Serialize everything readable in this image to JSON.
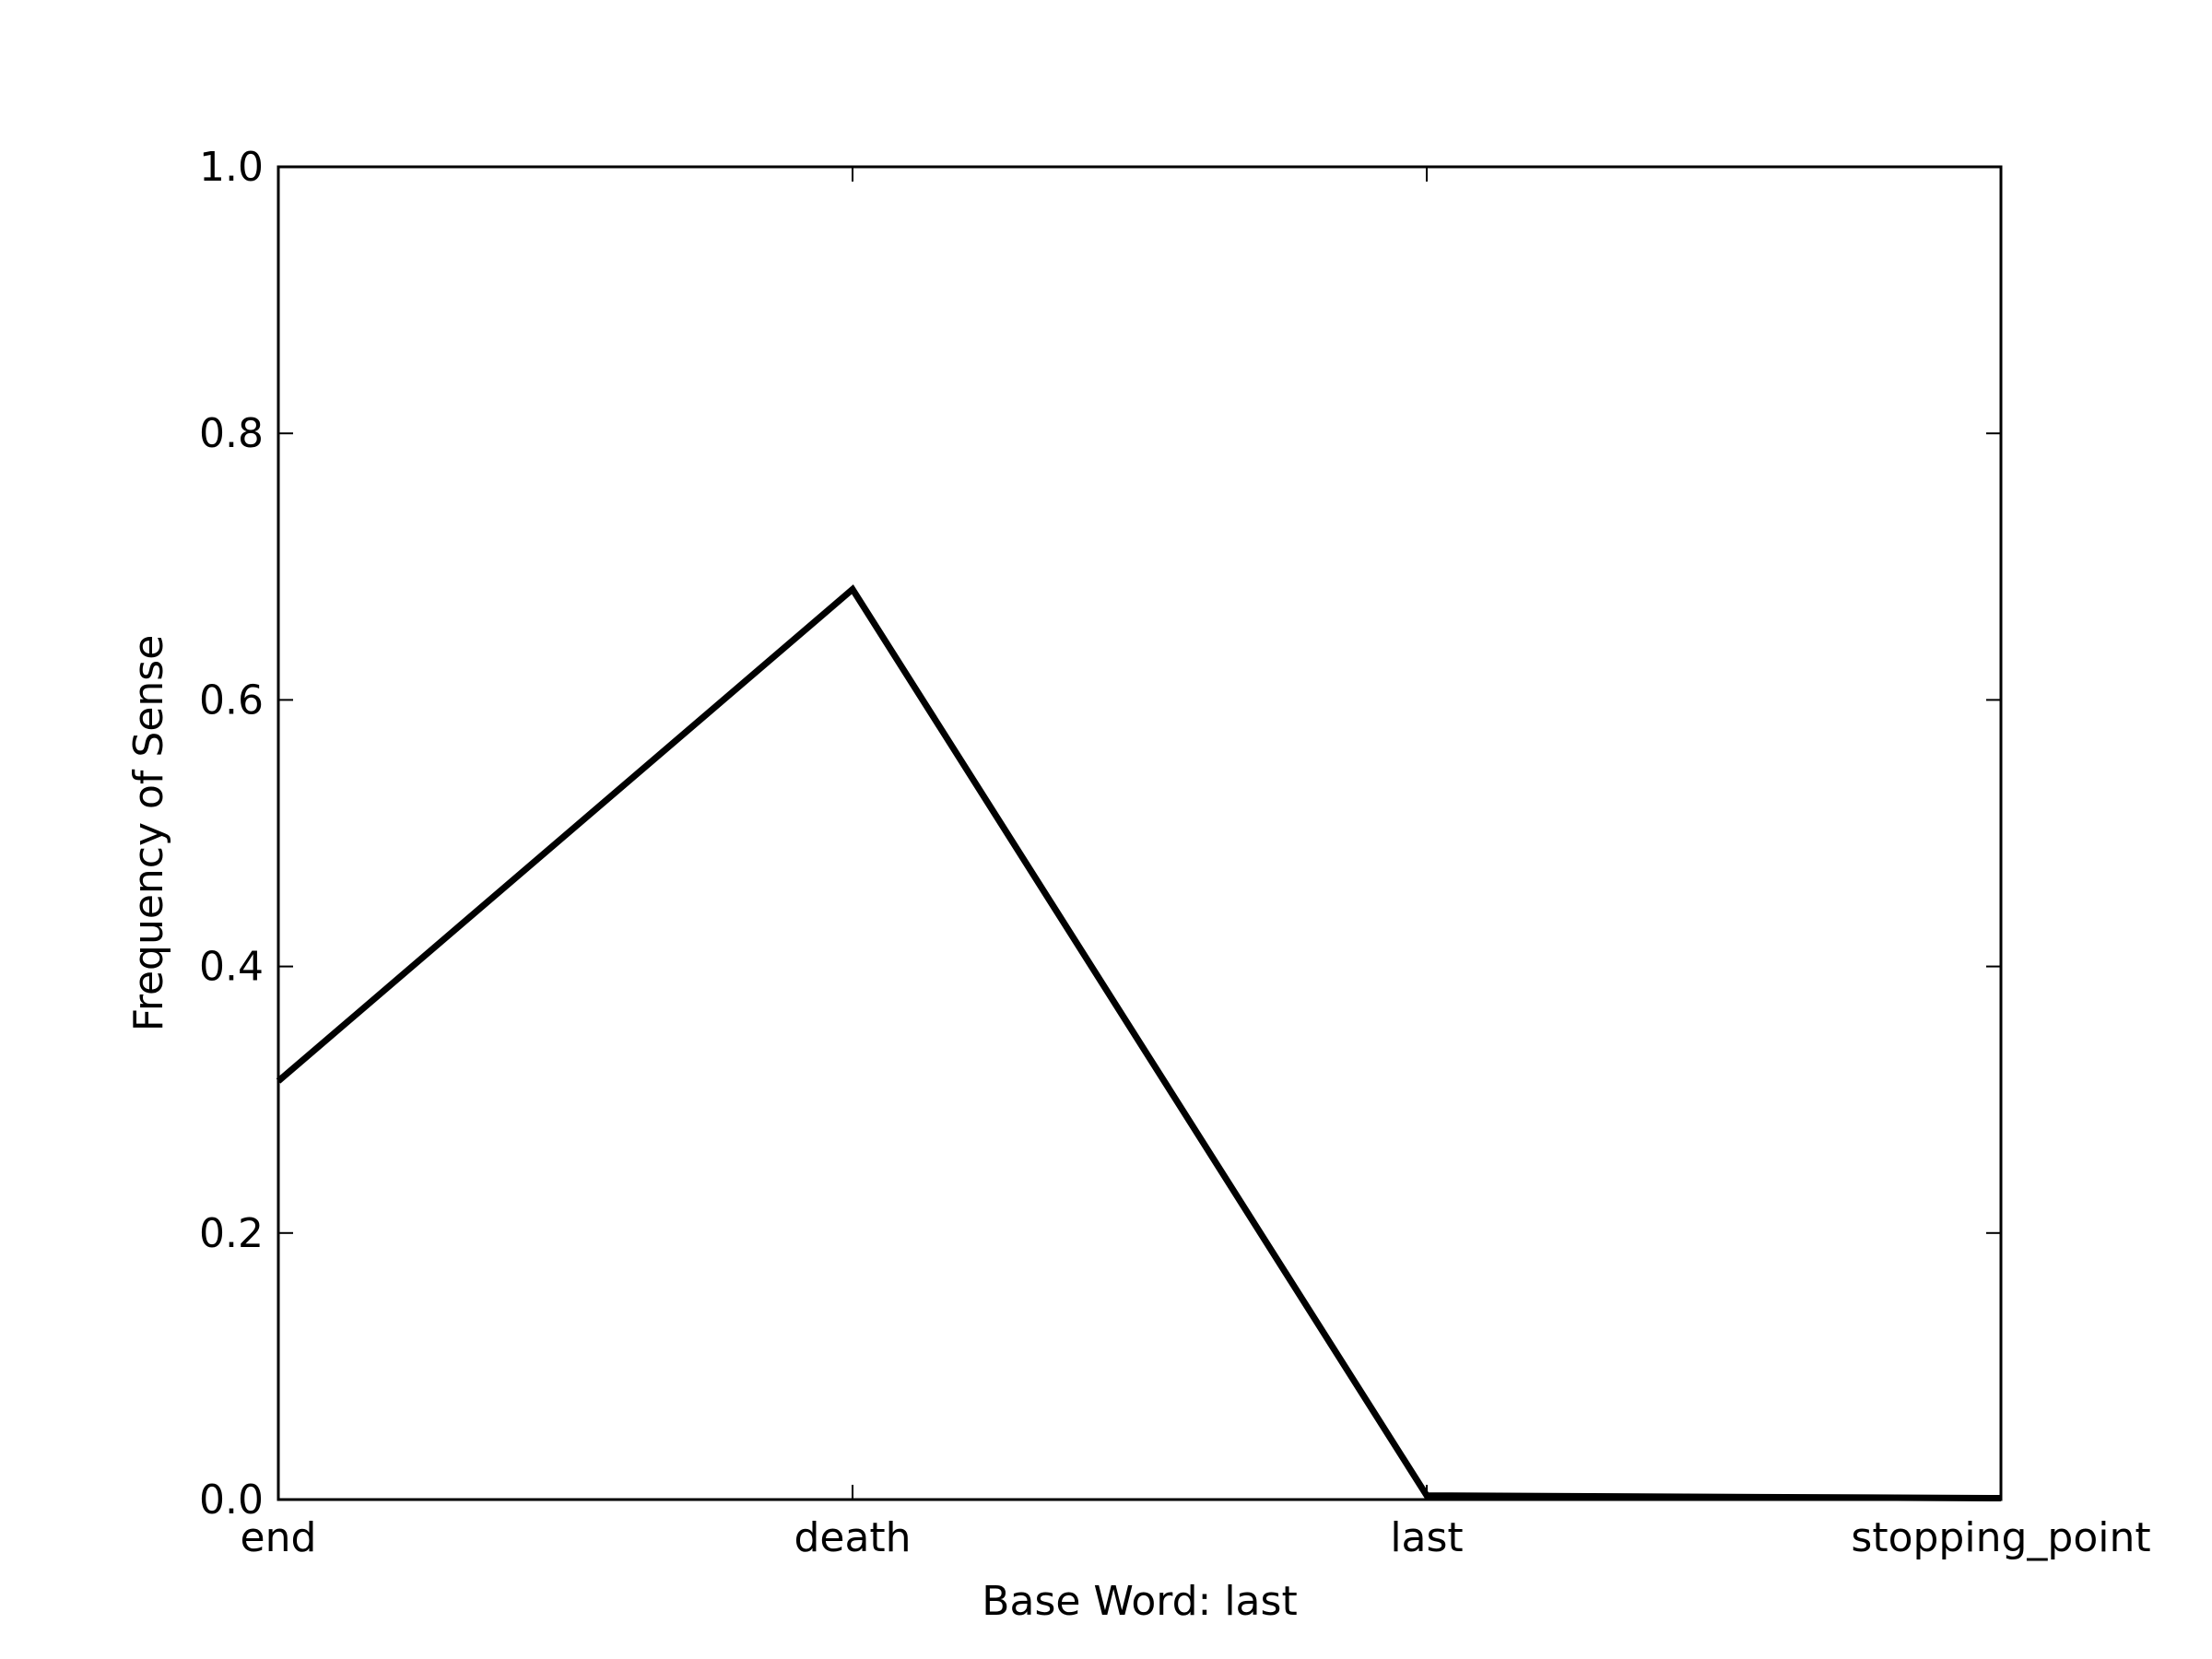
{
  "chart_data": {
    "type": "line",
    "title": "",
    "xlabel": "Base Word: last",
    "ylabel": "Frequency of Sense",
    "categories": [
      "end",
      "death",
      "last",
      "stopping_point"
    ],
    "series": [
      {
        "values": [
          0.314,
          0.683,
          0.003,
          0.001
        ]
      }
    ],
    "ylim": [
      0.0,
      1.0
    ],
    "yticks": [
      "0.0",
      "0.2",
      "0.4",
      "0.6",
      "0.8",
      "1.0"
    ],
    "grid": false,
    "legend": "none",
    "line_color": "#000000"
  }
}
